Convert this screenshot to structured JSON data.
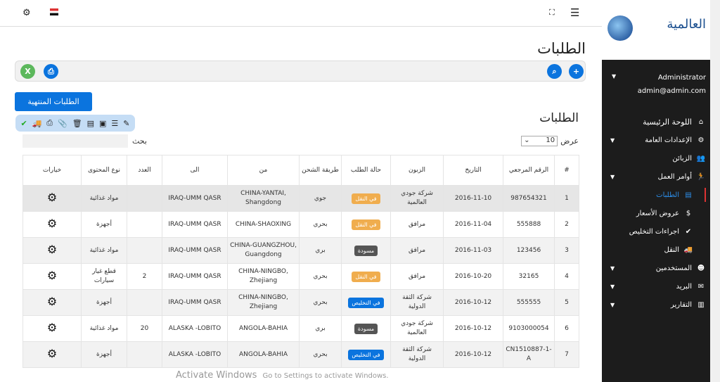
{
  "header": {
    "menu_icon": "hamburger-icon",
    "fullscreen_icon": "fullscreen-icon",
    "flag_icon": "egypt-flag-icon",
    "settings_icon": "gear-icon"
  },
  "page": {
    "title": "الطلبات",
    "finished_button": "الطلبات المنتهية",
    "section_title": "الطلبات",
    "show_label": "عرض",
    "page_length": "10",
    "search_label": "بحث",
    "search_value": ""
  },
  "table": {
    "headers": [
      "#",
      "الرقم المرجعي",
      "التاريخ",
      "الزبون",
      "حالة الطلب",
      "طريقة الشحن",
      "من",
      "الى",
      "العدد",
      "نوع المحتوى",
      "خيارات"
    ],
    "rows": [
      [
        "1",
        "987654321",
        "2016-11-10",
        "شركة جودي العالمية",
        "في النقل",
        "جوي",
        "CHINA-YANTAI, Shangdong",
        "IRAQ-UMM QASR",
        "",
        "مواد غذائية"
      ],
      [
        "2",
        "555888",
        "2016-11-04",
        "مرافق",
        "في النقل",
        "بحري",
        "CHINA-SHAOXING",
        "IRAQ-UMM QASR",
        "",
        "أجهزة"
      ],
      [
        "3",
        "123456",
        "2016-11-03",
        "مرافق",
        "مسودة",
        "بري",
        "CHINA-GUANGZHOU, Guangdong",
        "IRAQ-UMM QASR",
        "",
        "مواد غذائية"
      ],
      [
        "4",
        "32165",
        "2016-10-20",
        "مرافق",
        "في النقل",
        "بحري",
        "CHINA-NINGBO, Zhejiang",
        "IRAQ-UMM QASR",
        "2",
        "قطع غيار سيارات"
      ],
      [
        "5",
        "555555",
        "2016-10-12",
        "شركة الثقة الدولية",
        "في التخليص",
        "بحري",
        "CHINA-NINGBO, Zhejiang",
        "IRAQ-UMM QASR",
        "",
        "أجهزة"
      ],
      [
        "6",
        "9103000054",
        "2016-10-12",
        "شركة جودي العالمية",
        "مسودة",
        "بري",
        "ANGOLA-BAHIA",
        "ALASKA -LOBITO",
        "20",
        "مواد غذائية"
      ],
      [
        "7",
        "CN1510887-1-A",
        "2016-10-12",
        "شركة الثقة الدولية",
        "في التخليص",
        "بحري",
        "ANGOLA-BAHIA",
        "ALASKA -LOBITO",
        "",
        "أجهزة"
      ]
    ]
  },
  "status_colors": {
    "في النقل": "#f0ad4e",
    "مسودة": "#555555",
    "في التخليص": "#0b74de"
  },
  "sidebar": {
    "logo_text": "العالمية",
    "user_name": "Administrator",
    "user_email": "admin@admin.com",
    "items": [
      {
        "label": "اللوحة الرئيسية",
        "icon": "home-icon"
      },
      {
        "label": "الإعدادات العامة",
        "icon": "gear-icon"
      },
      {
        "label": "الزبائن",
        "icon": "users-icon"
      },
      {
        "label": "أوامر العمل",
        "icon": "running-icon"
      },
      {
        "label": "الطلبات",
        "icon": "file-icon"
      },
      {
        "label": "عروض الأسعار",
        "icon": "dollar-icon"
      },
      {
        "label": "اجراءات التخليص",
        "icon": "check-shield-icon"
      },
      {
        "label": "النقل",
        "icon": "truck-icon"
      },
      {
        "label": "المستخدمين",
        "icon": "user-circle-icon"
      },
      {
        "label": "البريد",
        "icon": "envelope-icon"
      },
      {
        "label": "التقارير",
        "icon": "chart-icon"
      }
    ]
  },
  "watermark": {
    "title": "Activate Windows",
    "subtitle": "Go to Settings to activate Windows."
  }
}
